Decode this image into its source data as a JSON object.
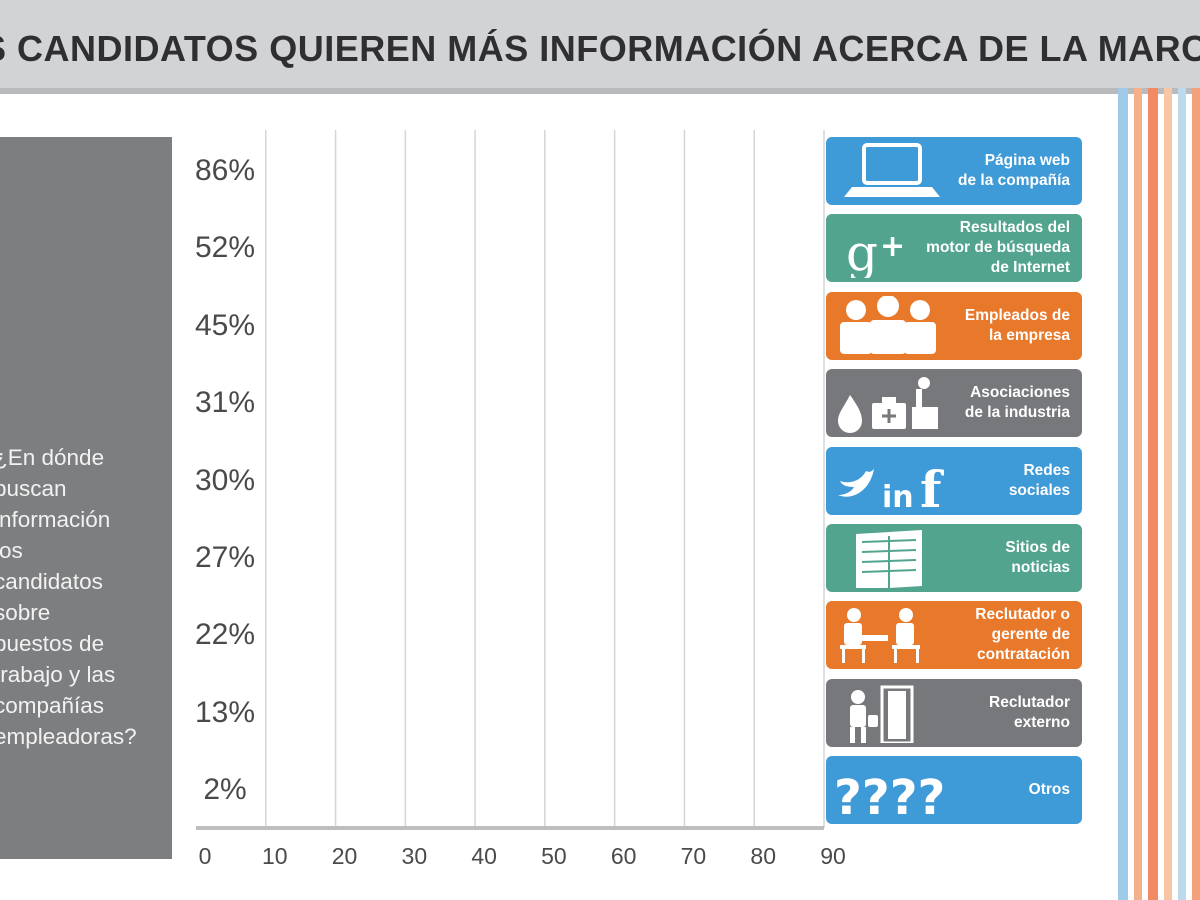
{
  "banner": {
    "title": "S CANDIDATOS QUIEREN MÁS INFORMACIÓN ACERCA DE LA MARCA"
  },
  "question": {
    "text": "¿En dónde\nbuscan\ninformación\nlos\ncandidatos\nsobre\npuestos de\ntrabajo y las\ncompañías\nempleadoras?"
  },
  "colors": {
    "blue": "#3f9ad8",
    "teal": "#52a48e",
    "orange": "#e8792b",
    "gray": "#77787b",
    "banner": "#d2d3d5",
    "panel": "#7d7e80"
  },
  "chart_data": {
    "type": "bar",
    "orientation": "horizontal",
    "categories": [
      "Página web de la compañía",
      "Resultados del motor de búsqueda de Internet",
      "Empleados de la empresa",
      "Asociaciones de la industria",
      "Redes sociales",
      "Sitios de noticias",
      "Reclutador o gerente de contratación",
      "Reclutador externo",
      "Otros"
    ],
    "value_labels": [
      "86%",
      "52%",
      "45%",
      "31%",
      "30%",
      "27%",
      "22%",
      "13%",
      "2%"
    ],
    "values": [
      86,
      52,
      45,
      31,
      30,
      27,
      22,
      13,
      2
    ],
    "xlim": [
      0,
      90
    ],
    "xticks": [
      0,
      10,
      20,
      30,
      40,
      50,
      60,
      70,
      80,
      90
    ],
    "grid": true,
    "legend_position": "right"
  },
  "legend": [
    {
      "label": "Página web\nde la compañía",
      "icon": "laptop-icon",
      "color": "#3f9ad8"
    },
    {
      "label": "Resultados del\nmotor de búsqueda\nde Internet",
      "icon": "google-plus-icon",
      "color": "#52a48e"
    },
    {
      "label": "Empleados de\nla empresa",
      "icon": "people-icon",
      "color": "#e8792b"
    },
    {
      "label": "Asociaciones\nde la industria",
      "icon": "industry-icon",
      "color": "#77787b"
    },
    {
      "label": "Redes\nsociales",
      "icon": "social-media-icon",
      "color": "#3f9ad8"
    },
    {
      "label": "Sitios de\nnoticias",
      "icon": "newspaper-icon",
      "color": "#52a48e"
    },
    {
      "label": "Reclutador o\ngerente de\ncontratación",
      "icon": "interview-icon",
      "color": "#e8792b"
    },
    {
      "label": "Reclutador\nexterno",
      "icon": "door-person-icon",
      "color": "#77787b"
    },
    {
      "label": "Otros",
      "icon": "question-marks-icon",
      "color": "#3f9ad8"
    }
  ],
  "stripes": [
    "#9fcbe8",
    "#f4b08a",
    "#f28a63",
    "#f7c6a5",
    "#bcd9ee",
    "#f4a07a"
  ]
}
